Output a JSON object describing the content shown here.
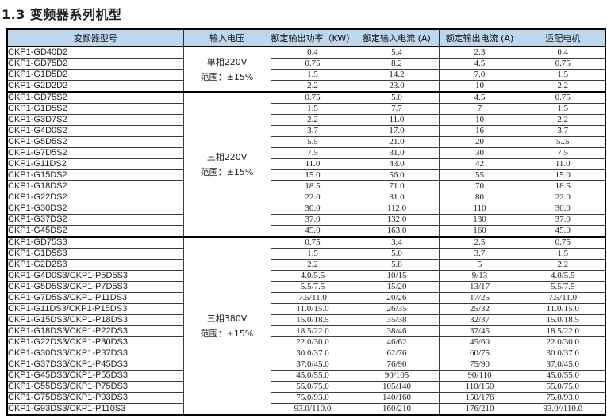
{
  "page_title": "1.3 变频器系列机型",
  "colors": {
    "header_bg": "#BDD7EE",
    "outer_border": "#000000",
    "inner_border": "#3d3d3d",
    "text": "#202020"
  },
  "table": {
    "headers": [
      "变频器型号",
      "输入电压",
      "额定输出功率（KW）",
      "额定输入电流 (A)",
      "额定输出电流 (A)",
      "适配电机"
    ],
    "groups": [
      {
        "voltage_line1": "单相220V",
        "voltage_line2": "范围：±15%",
        "rows": [
          {
            "model": "CKP1-GD40D2",
            "power": "0.4",
            "input_current": "5.4",
            "output_current": "2.3",
            "motor": "0.4"
          },
          {
            "model": "CKP1-GD75D2",
            "power": "0.75",
            "input_current": "8.2",
            "output_current": "4.5",
            "motor": "0.75"
          },
          {
            "model": "CKP1-G1D5D2",
            "power": "1.5",
            "input_current": "14.2",
            "output_current": "7.0",
            "motor": "1.5"
          },
          {
            "model": "CKP1-G2D2D2",
            "power": "2.2",
            "input_current": "23.0",
            "output_current": "10",
            "motor": "2.2"
          }
        ]
      },
      {
        "voltage_line1": "三相220V",
        "voltage_line2": "范围：±15%",
        "rows": [
          {
            "model": "CKP1-GD75S2",
            "power": "0.75",
            "input_current": "5.0",
            "output_current": "4.5",
            "motor": "0.75"
          },
          {
            "model": "CKP1-G1D5S2",
            "power": "1.5",
            "input_current": "7.7",
            "output_current": "7",
            "motor": "1.5"
          },
          {
            "model": "CKP1-G3D7S2",
            "power": "2.2",
            "input_current": "11.0",
            "output_current": "10",
            "motor": "2.2"
          },
          {
            "model": "CKP1-G4D0S2",
            "power": "3.7",
            "input_current": "17.0",
            "output_current": "16",
            "motor": "3.7"
          },
          {
            "model": "CKP1-G5D5S2",
            "power": "5.5",
            "input_current": "21.0",
            "output_current": "20",
            "motor": "5..5"
          },
          {
            "model": "CKP1-G7D5S2",
            "power": "7.5",
            "input_current": "31.0",
            "output_current": "30",
            "motor": "7.5"
          },
          {
            "model": "CKP1-G11DS2",
            "power": "11.0",
            "input_current": "43.0",
            "output_current": "42",
            "motor": "11.0"
          },
          {
            "model": "CKP1-G15DS2",
            "power": "15.0",
            "input_current": "56.0",
            "output_current": "55",
            "motor": "15.0"
          },
          {
            "model": "CKP1-G18DS2",
            "power": "18.5",
            "input_current": "71.0",
            "output_current": "70",
            "motor": "18.5"
          },
          {
            "model": "CKP1-G22DS2",
            "power": "22.0",
            "input_current": "81.0",
            "output_current": "80",
            "motor": "22.0"
          },
          {
            "model": "CKP1-G30DS2",
            "power": "30.0",
            "input_current": "112.0",
            "output_current": "110",
            "motor": "30.0"
          },
          {
            "model": "CKP1-G37DS2",
            "power": "37.0",
            "input_current": "132.0",
            "output_current": "130",
            "motor": "37.0"
          },
          {
            "model": "CKP1-G45DS2",
            "power": "45.0",
            "input_current": "163.0",
            "output_current": "160",
            "motor": "45.0"
          }
        ]
      },
      {
        "voltage_line1": "三相380V",
        "voltage_line2": "范围：±15%",
        "rows": [
          {
            "model": "CKP1-GD75S3",
            "power": "0.75",
            "input_current": "3.4",
            "output_current": "2.5",
            "motor": "0.75"
          },
          {
            "model": "CKP1-G1D5S3",
            "power": "1.5",
            "input_current": "5.0",
            "output_current": "3.7",
            "motor": "1.5"
          },
          {
            "model": "CKP1-G2D2S3",
            "power": "2.2",
            "input_current": "5.8",
            "output_current": "5",
            "motor": "2.2"
          },
          {
            "model": "CKP1-G4D0S3/CKP1-P5D5S3",
            "power": "4.0/5.5",
            "input_current": "10/15",
            "output_current": "9/13",
            "motor": "4.0/5.5"
          },
          {
            "model": "CKP1-G5D5S3/CKP1-P7D5S3",
            "power": "5.5/7.5",
            "input_current": "15/20",
            "output_current": "13/17",
            "motor": "5.5/7.5"
          },
          {
            "model": "CKP1-G7D5S3/CKP1-P11DS3",
            "power": "7.5/11.0",
            "input_current": "20/26",
            "output_current": "17/25",
            "motor": "7.5/11.0"
          },
          {
            "model": "CKP1-G11DS3/CKP1-P15DS3",
            "power": "11.0/15.0",
            "input_current": "26/35",
            "output_current": "25/32",
            "motor": "11.0/15.0"
          },
          {
            "model": "CKP1-G15DS3/CKP1-P18DS3",
            "power": "15.0/18.5",
            "input_current": "35/38",
            "output_current": "32/37",
            "motor": "15.0/18.5"
          },
          {
            "model": "CKP1-G18DS3/CKP1-P22DS3",
            "power": "18.5/22.0",
            "input_current": "38/46",
            "output_current": "37/45",
            "motor": "18.5/22.0"
          },
          {
            "model": "CKP1-G22DS3/CKP1-P30DS3",
            "power": "22.0/30.0",
            "input_current": "46/62",
            "output_current": "45/60",
            "motor": "22.0/30.0"
          },
          {
            "model": "CKP1-G30DS3/CKP1-P37DS3",
            "power": "30.0/37.0",
            "input_current": "62/76",
            "output_current": "60/75",
            "motor": "30.0/37.0"
          },
          {
            "model": "CKP1-G37DS3/CKP1-P45DS3",
            "power": "37.0/45.0",
            "input_current": "76/90",
            "output_current": "75/90",
            "motor": "37.0/45.0"
          },
          {
            "model": "CKP1-G45DS3/CKP1-P55DS3",
            "power": "45.0/55.0",
            "input_current": "90/105",
            "output_current": "90/110",
            "motor": "45.0/55.0"
          },
          {
            "model": "CKP1-G55DS3/CKP1-P75DS3",
            "power": "55.0/75.0",
            "input_current": "105/140",
            "output_current": "110/150",
            "motor": "55.0/75.0"
          },
          {
            "model": "CKP1-G75DS3/CKP1-P93DS3",
            "power": "75.0/93.0",
            "input_current": "140/160",
            "output_current": "150/176",
            "motor": "75.0/93.0"
          },
          {
            "model": "CKP1-G93DS3/CKP1-P110S3",
            "power": "93.0/110.0",
            "input_current": "160/210",
            "output_current": "176/210",
            "motor": "93.0//110.0"
          }
        ]
      }
    ]
  }
}
